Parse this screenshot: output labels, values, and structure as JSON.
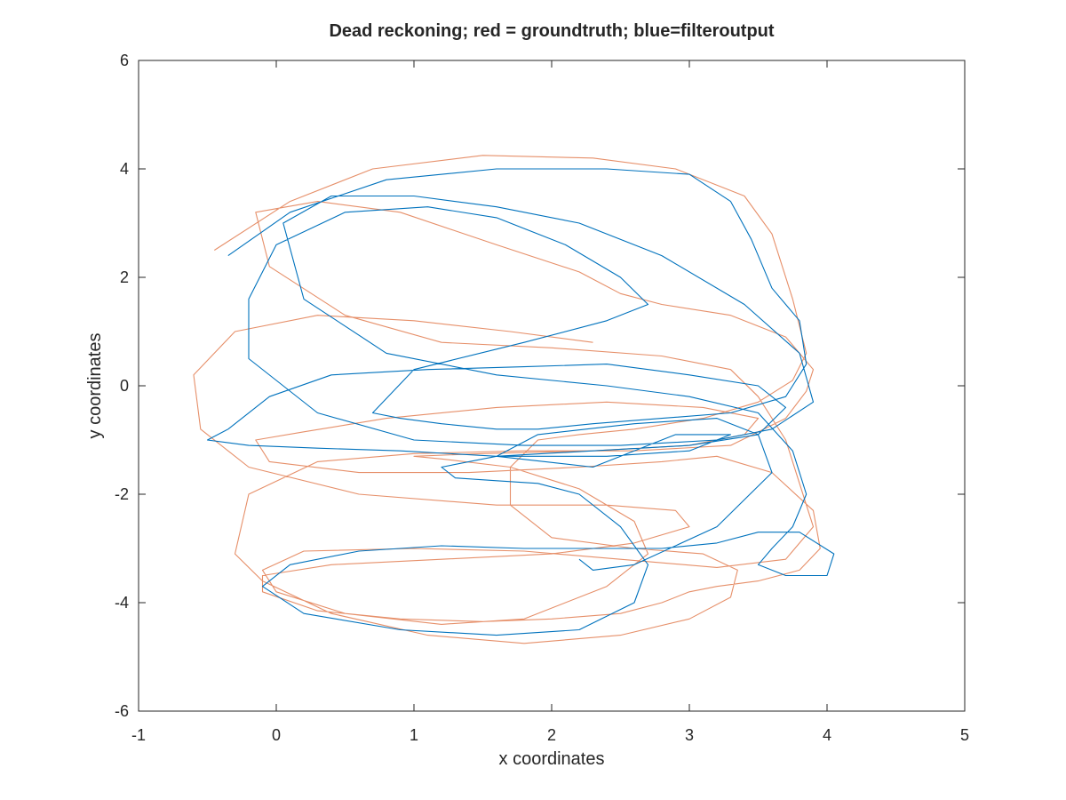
{
  "chart_data": {
    "type": "line",
    "title": "Dead reckoning; red = groundtruth; blue=filteroutput",
    "xlabel": "x coordinates",
    "ylabel": "y coordinates",
    "xlim": [
      -1,
      5
    ],
    "ylim": [
      -6,
      6
    ],
    "xticks": [
      "-1",
      "0",
      "1",
      "2",
      "3",
      "4",
      "5"
    ],
    "yticks": [
      "6",
      "4",
      "2",
      "0",
      "-2",
      "-4",
      "-6"
    ],
    "grid": false,
    "legend": "none",
    "colors": {
      "groundtruth": "#d95319",
      "filteroutput": "#0072bd"
    },
    "series": [
      {
        "role": "groundtruth",
        "color": "#d95319",
        "x": [
          -0.45,
          0.1,
          0.7,
          1.5,
          2.3,
          2.9,
          3.4,
          3.6,
          3.75,
          3.85,
          3.75,
          3.5,
          3.1,
          2.6,
          2.2,
          1.9,
          1.7,
          1.7,
          2.0,
          2.6,
          3.1,
          3.35,
          3.3,
          3.0,
          2.5,
          1.8,
          1.1,
          0.4,
          -0.1,
          -0.3,
          -0.2,
          0.3,
          1.0,
          1.8,
          2.6,
          3.3,
          3.7,
          3.85,
          3.9,
          3.7,
          3.3,
          2.8,
          2.5,
          2.35,
          2.2,
          1.6,
          0.9,
          0.3,
          -0.15,
          -0.05,
          0.5,
          1.2,
          2.0,
          2.8,
          3.3,
          3.5,
          3.7,
          3.8,
          3.9,
          3.7,
          3.2,
          2.5,
          1.8,
          1.0,
          0.2,
          -0.1,
          0.0,
          0.5,
          1.2,
          1.8,
          2.4,
          2.7,
          2.6,
          2.2,
          1.7,
          1.2,
          1.0,
          1.5,
          2.3,
          3.0,
          3.4,
          3.5,
          3.1,
          2.4,
          1.6,
          0.8,
          0.2,
          -0.15,
          -0.05,
          0.6,
          1.4,
          2.2,
          2.8,
          3.2,
          3.6,
          3.9,
          3.95,
          3.8,
          3.5,
          3.2,
          3.0,
          2.8,
          2.5,
          2.0,
          1.5,
          0.9,
          0.3,
          -0.1,
          -0.1,
          0.4,
          1.2,
          2.0,
          2.6,
          3.0,
          2.9,
          2.4,
          1.6,
          0.6,
          -0.2,
          -0.55,
          -0.6,
          -0.3,
          0.3,
          1.0,
          1.7,
          2.3
        ],
        "y": [
          2.5,
          3.4,
          4.0,
          4.25,
          4.2,
          4.0,
          3.5,
          2.8,
          1.6,
          0.6,
          0.1,
          -0.3,
          -0.6,
          -0.8,
          -0.9,
          -1.0,
          -1.5,
          -2.2,
          -2.8,
          -3.0,
          -3.1,
          -3.4,
          -3.9,
          -4.3,
          -4.6,
          -4.75,
          -4.6,
          -4.2,
          -3.6,
          -3.1,
          -2.0,
          -1.4,
          -1.25,
          -1.2,
          -1.2,
          -1.1,
          -0.6,
          -0.1,
          0.3,
          0.9,
          1.3,
          1.5,
          1.7,
          1.9,
          2.1,
          2.6,
          3.2,
          3.4,
          3.2,
          2.2,
          1.3,
          0.8,
          0.7,
          0.55,
          0.3,
          -0.2,
          -1.0,
          -1.8,
          -2.6,
          -3.2,
          -3.35,
          -3.2,
          -3.05,
          -3.0,
          -3.05,
          -3.4,
          -3.8,
          -4.2,
          -4.4,
          -4.3,
          -3.7,
          -3.1,
          -2.5,
          -1.9,
          -1.5,
          -1.35,
          -1.3,
          -1.25,
          -1.2,
          -1.1,
          -0.9,
          -0.6,
          -0.4,
          -0.3,
          -0.4,
          -0.6,
          -0.85,
          -1.0,
          -1.4,
          -1.6,
          -1.6,
          -1.5,
          -1.4,
          -1.3,
          -1.6,
          -2.3,
          -3.0,
          -3.4,
          -3.6,
          -3.7,
          -3.8,
          -4.0,
          -4.2,
          -4.3,
          -4.35,
          -4.3,
          -4.15,
          -3.8,
          -3.5,
          -3.3,
          -3.2,
          -3.1,
          -2.9,
          -2.6,
          -2.3,
          -2.2,
          -2.2,
          -2.0,
          -1.5,
          -0.8,
          0.2,
          1.0,
          1.3,
          1.2,
          1.0,
          0.8
        ]
      },
      {
        "role": "filteroutput",
        "color": "#0072bd",
        "x": [
          -0.35,
          0.1,
          0.8,
          1.6,
          2.4,
          3.0,
          3.3,
          3.45,
          3.6,
          3.8,
          3.85,
          3.7,
          3.3,
          2.8,
          2.3,
          1.9,
          1.6,
          1.2,
          0.9,
          0.7,
          1.0,
          1.8,
          2.4,
          2.7,
          2.5,
          2.1,
          1.6,
          1.1,
          0.5,
          0.0,
          -0.2,
          -0.2,
          0.3,
          1.0,
          1.8,
          2.5,
          3.2,
          3.6,
          3.9,
          3.8,
          3.4,
          2.8,
          2.2,
          1.6,
          1.0,
          0.4,
          0.05,
          0.2,
          0.8,
          1.6,
          2.4,
          3.0,
          3.5,
          3.75,
          3.85,
          3.75,
          3.6,
          3.5,
          3.7,
          4.0,
          4.05,
          3.8,
          3.5,
          3.2,
          2.8,
          2.4,
          1.8,
          1.2,
          0.6,
          0.1,
          -0.1,
          0.2,
          0.9,
          1.6,
          2.2,
          2.6,
          2.7,
          2.5,
          2.2,
          1.9,
          1.6,
          1.3,
          1.2,
          1.6,
          2.3,
          3.0,
          3.5,
          3.7,
          3.5,
          3.0,
          2.4,
          1.8,
          1.1,
          0.4,
          -0.05,
          -0.35,
          -0.5,
          -0.2,
          0.3,
          0.9,
          1.6,
          2.4,
          3.0,
          3.3,
          2.9,
          2.3,
          1.6,
          1.9,
          2.6,
          3.2,
          3.5,
          3.6,
          3.2,
          2.6,
          2.3,
          2.2
        ],
        "y": [
          2.4,
          3.2,
          3.8,
          4.0,
          4.0,
          3.9,
          3.4,
          2.7,
          1.8,
          1.2,
          0.4,
          -0.2,
          -0.5,
          -0.6,
          -0.7,
          -0.8,
          -0.8,
          -0.7,
          -0.6,
          -0.5,
          0.3,
          0.8,
          1.2,
          1.5,
          2.0,
          2.6,
          3.1,
          3.3,
          3.2,
          2.6,
          1.6,
          0.5,
          -0.5,
          -1.0,
          -1.1,
          -1.1,
          -1.0,
          -0.8,
          -0.3,
          0.6,
          1.5,
          2.4,
          3.0,
          3.3,
          3.5,
          3.5,
          3.0,
          1.6,
          0.6,
          0.2,
          0.0,
          -0.2,
          -0.5,
          -1.2,
          -2.0,
          -2.6,
          -3.0,
          -3.3,
          -3.5,
          -3.5,
          -3.1,
          -2.7,
          -2.7,
          -2.9,
          -3.0,
          -3.0,
          -3.0,
          -2.95,
          -3.05,
          -3.3,
          -3.7,
          -4.2,
          -4.5,
          -4.6,
          -4.5,
          -4.0,
          -3.3,
          -2.6,
          -2.0,
          -1.8,
          -1.75,
          -1.7,
          -1.5,
          -1.3,
          -1.2,
          -1.1,
          -0.9,
          -0.4,
          0.0,
          0.2,
          0.4,
          0.35,
          0.3,
          0.2,
          -0.2,
          -0.8,
          -1.0,
          -1.1,
          -1.15,
          -1.2,
          -1.3,
          -1.3,
          -1.2,
          -0.9,
          -0.9,
          -1.5,
          -1.3,
          -0.9,
          -0.7,
          -0.6,
          -0.9,
          -1.6,
          -2.6,
          -3.3,
          -3.4,
          -3.2
        ]
      }
    ]
  }
}
